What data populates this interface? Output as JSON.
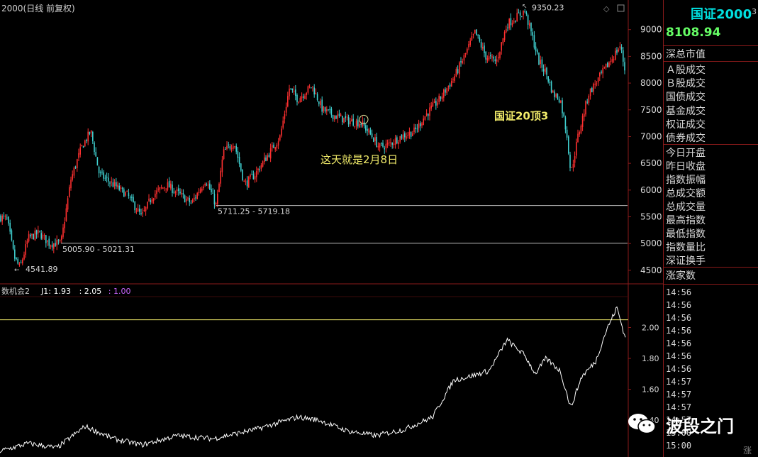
{
  "window": {
    "top_title": "2000(日线 前复权)",
    "corner_mark": "3",
    "bottom_corner_mark": "涨"
  },
  "side_panel": {
    "index_name": "国证2000",
    "index_value": "8108.94",
    "labels": [
      "深总市值",
      "Ａ股成交",
      "Ｂ股成交",
      "国债成交",
      "基金成交",
      "权证成交",
      "债券成交",
      "今日开盘",
      "昨日收盘",
      "指数振幅",
      "总成交额",
      "总成交量",
      "最高指数",
      "最低指数",
      "指数量比",
      "深证换手",
      "涨家数"
    ],
    "times": [
      "14:56",
      "14:56",
      "14:56",
      "14:56",
      "14:56",
      "14:56",
      "14:56",
      "14:57",
      "14:57",
      "14:57",
      "14:57",
      "15:00",
      "15:00"
    ],
    "colors": {
      "name": "#00e0e0",
      "value": "#66ff66",
      "label": "#d8d8d8"
    }
  },
  "watermark": {
    "text": "波段之门",
    "icon": "wechat-icon"
  },
  "chart_data": [
    {
      "type": "candlestick",
      "title": "2000(日线 前复权)",
      "ylim": [
        4300,
        9500
      ],
      "yticks": [
        4500,
        5000,
        5500,
        6000,
        6500,
        7000,
        7500,
        8000,
        8500,
        9000
      ],
      "colors": {
        "up": "#ff3030",
        "down": "#40d0d0",
        "axis": "#8a1a1a"
      },
      "close_path": [
        [
          0,
          5500
        ],
        [
          10,
          5450
        ],
        [
          20,
          4750
        ],
        [
          28,
          4541.89
        ],
        [
          40,
          5100
        ],
        [
          55,
          5200
        ],
        [
          70,
          5000
        ],
        [
          86,
          5005.9
        ],
        [
          100,
          6200
        ],
        [
          115,
          6800
        ],
        [
          128,
          7100
        ],
        [
          140,
          6300
        ],
        [
          160,
          6100
        ],
        [
          180,
          5900
        ],
        [
          200,
          5500
        ],
        [
          215,
          5900
        ],
        [
          235,
          6100
        ],
        [
          255,
          5900
        ],
        [
          270,
          5750
        ],
        [
          290,
          6200
        ],
        [
          305,
          5711.25
        ],
        [
          315,
          6700
        ],
        [
          330,
          6900
        ],
        [
          345,
          6100
        ],
        [
          360,
          6300
        ],
        [
          380,
          6700
        ],
        [
          395,
          7000
        ],
        [
          408,
          7900
        ],
        [
          420,
          7700
        ],
        [
          440,
          7950
        ],
        [
          455,
          7500
        ],
        [
          470,
          7400
        ],
        [
          490,
          7300
        ],
        [
          510,
          7250
        ],
        [
          525,
          7000
        ],
        [
          535,
          6800
        ],
        [
          548,
          6850
        ],
        [
          565,
          7000
        ],
        [
          585,
          7100
        ],
        [
          600,
          7400
        ],
        [
          620,
          7700
        ],
        [
          640,
          8100
        ],
        [
          655,
          8500
        ],
        [
          670,
          8950
        ],
        [
          685,
          8500
        ],
        [
          700,
          8400
        ],
        [
          715,
          9100
        ],
        [
          730,
          9250
        ],
        [
          740,
          9350.23
        ],
        [
          750,
          8900
        ],
        [
          760,
          8400
        ],
        [
          770,
          8200
        ],
        [
          780,
          7800
        ],
        [
          790,
          7700
        ],
        [
          800,
          7000
        ],
        [
          805,
          6300
        ],
        [
          815,
          7000
        ],
        [
          830,
          7800
        ],
        [
          845,
          8100
        ],
        [
          860,
          8400
        ],
        [
          875,
          8700
        ],
        [
          883,
          8108.94
        ]
      ],
      "annotations": [
        {
          "text": "9350.23",
          "x": 740,
          "y": 9350.23
        },
        {
          "text": "4541.89",
          "x": 28,
          "y": 4541.89
        },
        {
          "text": "5005.90 - 5021.31",
          "x": 86,
          "y": 5005.9
        },
        {
          "text": "5711.25 - 5719.18",
          "x": 305,
          "y": 5711.25
        },
        {
          "text": "这天就是2月8日",
          "x": 515,
          "y": 6500
        },
        {
          "text": "国证20顶3",
          "x": 740,
          "y": 7320
        }
      ],
      "hlines": [
        {
          "from_x": 86,
          "y": 5005.9
        },
        {
          "from_x": 305,
          "y": 5711.25
        }
      ]
    },
    {
      "type": "line",
      "title": "数机会2",
      "legend": [
        {
          "text": "J1: 1.93",
          "color": "#ffffff"
        },
        {
          "text": ": 2.05",
          "color": "#ffffff"
        },
        {
          "text": ": 1.00",
          "color": "#cc66ff"
        }
      ],
      "ylim": [
        1.18,
        2.2
      ],
      "yticks": [
        1.4,
        1.6,
        1.8,
        2.0
      ],
      "reference_line": 2.05,
      "series": [
        {
          "color": "#ffffff",
          "points": [
            [
              0,
              1.2
            ],
            [
              40,
              1.25
            ],
            [
              80,
              1.22
            ],
            [
              120,
              1.36
            ],
            [
              160,
              1.28
            ],
            [
              200,
              1.24
            ],
            [
              250,
              1.3
            ],
            [
              300,
              1.28
            ],
            [
              360,
              1.34
            ],
            [
              420,
              1.42
            ],
            [
              450,
              1.4
            ],
            [
              490,
              1.33
            ],
            [
              530,
              1.3
            ],
            [
              570,
              1.34
            ],
            [
              610,
              1.42
            ],
            [
              640,
              1.66
            ],
            [
              660,
              1.68
            ],
            [
              690,
              1.72
            ],
            [
              715,
              1.92
            ],
            [
              740,
              1.82
            ],
            [
              755,
              1.7
            ],
            [
              770,
              1.8
            ],
            [
              790,
              1.72
            ],
            [
              805,
              1.48
            ],
            [
              820,
              1.68
            ],
            [
              840,
              1.78
            ],
            [
              855,
              1.98
            ],
            [
              870,
              2.13
            ],
            [
              882,
              1.93
            ]
          ]
        }
      ]
    }
  ]
}
